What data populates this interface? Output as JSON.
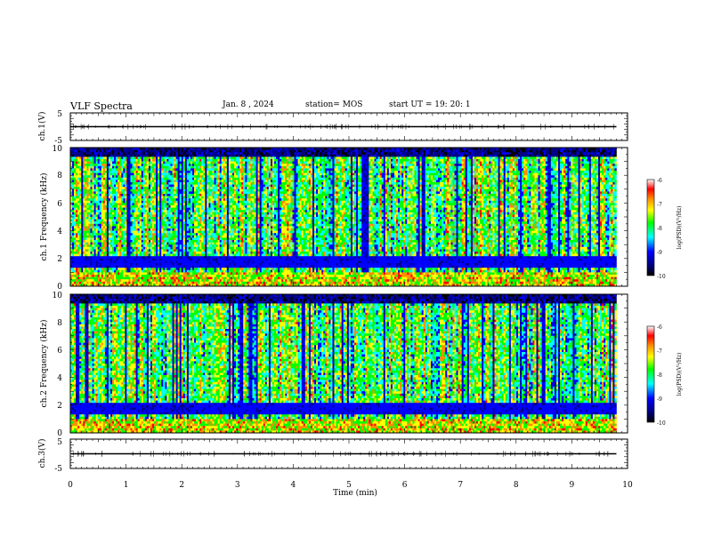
{
  "header": {
    "title": "VLF Spectra",
    "date": "Jan. 8 , 2024",
    "station": "station= MOS",
    "start": "start UT = 19: 20: 1"
  },
  "chart_data": [
    {
      "type": "line",
      "panel": "ch1-waveform",
      "ylabel": "ch.1(V)",
      "ylim": [
        -5,
        5
      ],
      "yticks": [
        "5",
        "-5"
      ],
      "xlim": [
        0,
        10
      ],
      "trace_level": 0
    },
    {
      "type": "heatmap",
      "panel": "ch1-spectrogram",
      "ylabel": "ch.1 Frequency (kHz)",
      "ylim": [
        0,
        10
      ],
      "yticks": [
        "0",
        "2",
        "4",
        "6",
        "8",
        "10"
      ],
      "xlim": [
        0,
        10
      ],
      "data_extent_min": 9.8,
      "colorbar": {
        "range": [
          -10,
          -6
        ],
        "ticks": [
          "-6",
          "-7",
          "-8",
          "-9",
          "-10"
        ],
        "label": "log(PSD)(V²/Hz)"
      }
    },
    {
      "type": "heatmap",
      "panel": "ch2-spectrogram",
      "ylabel": "ch.2 Frequency (kHz)",
      "ylim": [
        0,
        10
      ],
      "yticks": [
        "0",
        "2",
        "4",
        "6",
        "8",
        "10"
      ],
      "xlim": [
        0,
        10
      ],
      "data_extent_min": 9.8,
      "colorbar": {
        "range": [
          -10,
          -6
        ],
        "ticks": [
          "-6",
          "-7",
          "-8",
          "-9",
          "-10"
        ],
        "label": "log(PSD)(V²/Hz)"
      }
    },
    {
      "type": "line",
      "panel": "ch3-waveform",
      "ylabel": "ch.3(V)",
      "ylim": [
        -5,
        5
      ],
      "yticks": [
        "5",
        "-5"
      ],
      "xlim": [
        0,
        10
      ],
      "trace_level": 0
    }
  ],
  "xaxis": {
    "label": "Time (min)",
    "ticks": [
      "0",
      "1",
      "2",
      "3",
      "4",
      "5",
      "6",
      "7",
      "8",
      "9",
      "10"
    ]
  },
  "colors": {
    "palette": [
      "#000000",
      "#00008b",
      "#0000ff",
      "#00ffff",
      "#00ff00",
      "#ffff00",
      "#ff8c00",
      "#ff0000",
      "#ffffff"
    ]
  }
}
